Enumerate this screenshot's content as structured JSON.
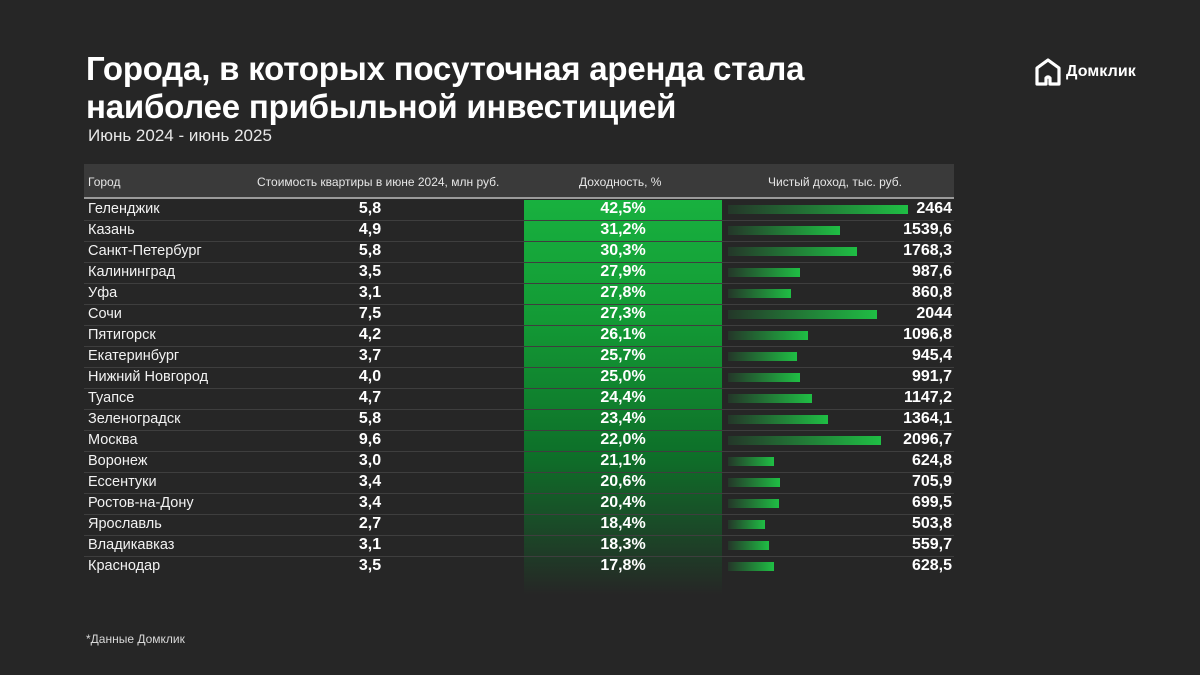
{
  "title": "Города, в которых посуточная аренда стала наиболее прибыльной инвестицией",
  "subtitle": "Июнь 2024 - июнь 2025",
  "logo": {
    "text": "Домклик",
    "icon": "house-icon"
  },
  "footnote": "*Данные Домклик",
  "colors": {
    "background": "#262626",
    "accent": "#18b13f",
    "header": "#3a3a3a"
  },
  "chart_data": {
    "type": "table",
    "title": "Города, в которых посуточная аренда стала наиболее прибыльной инвестицией",
    "subtitle": "Июнь 2024 - июнь 2025",
    "columns": [
      "Город",
      "Стоимость квартиры в июне 2024, млн руб.",
      "Доходность, %",
      "Чистый доход, тыс. руб."
    ],
    "income_max": 2464,
    "rows": [
      {
        "city": "Геленджик",
        "cost": "5,8",
        "yield": "42,5%",
        "income_label": "2464",
        "income": 2464
      },
      {
        "city": "Казань",
        "cost": "4,9",
        "yield": "31,2%",
        "income_label": "1539,6",
        "income": 1539.6
      },
      {
        "city": "Санкт-Петербург",
        "cost": "5,8",
        "yield": "30,3%",
        "income_label": "1768,3",
        "income": 1768.3
      },
      {
        "city": "Калининград",
        "cost": "3,5",
        "yield": "27,9%",
        "income_label": "987,6",
        "income": 987.6
      },
      {
        "city": "Уфа",
        "cost": "3,1",
        "yield": "27,8%",
        "income_label": "860,8",
        "income": 860.8
      },
      {
        "city": "Сочи",
        "cost": "7,5",
        "yield": "27,3%",
        "income_label": "2044",
        "income": 2044
      },
      {
        "city": "Пятигорск",
        "cost": "4,2",
        "yield": "26,1%",
        "income_label": "1096,8",
        "income": 1096.8
      },
      {
        "city": "Екатеринбург",
        "cost": "3,7",
        "yield": "25,7%",
        "income_label": "945,4",
        "income": 945.4
      },
      {
        "city": "Нижний Новгород",
        "cost": "4,0",
        "yield": "25,0%",
        "income_label": "991,7",
        "income": 991.7
      },
      {
        "city": "Туапсе",
        "cost": "4,7",
        "yield": "24,4%",
        "income_label": "1147,2",
        "income": 1147.2
      },
      {
        "city": "Зеленоградск",
        "cost": "5,8",
        "yield": "23,4%",
        "income_label": "1364,1",
        "income": 1364.1
      },
      {
        "city": "Москва",
        "cost": "9,6",
        "yield": "22,0%",
        "income_label": "2096,7",
        "income": 2096.7
      },
      {
        "city": "Воронеж",
        "cost": "3,0",
        "yield": "21,1%",
        "income_label": "624,8",
        "income": 624.8
      },
      {
        "city": "Ессентуки",
        "cost": "3,4",
        "yield": "20,6%",
        "income_label": "705,9",
        "income": 705.9
      },
      {
        "city": "Ростов-на-Дону",
        "cost": "3,4",
        "yield": "20,4%",
        "income_label": "699,5",
        "income": 699.5
      },
      {
        "city": "Ярославль",
        "cost": "2,7",
        "yield": "18,4%",
        "income_label": "503,8",
        "income": 503.8
      },
      {
        "city": "Владикавказ",
        "cost": "3,1",
        "yield": "18,3%",
        "income_label": "559,7",
        "income": 559.7
      },
      {
        "city": "Краснодар",
        "cost": "3,5",
        "yield": "17,8%",
        "income_label": "628,5",
        "income": 628.5
      }
    ]
  }
}
